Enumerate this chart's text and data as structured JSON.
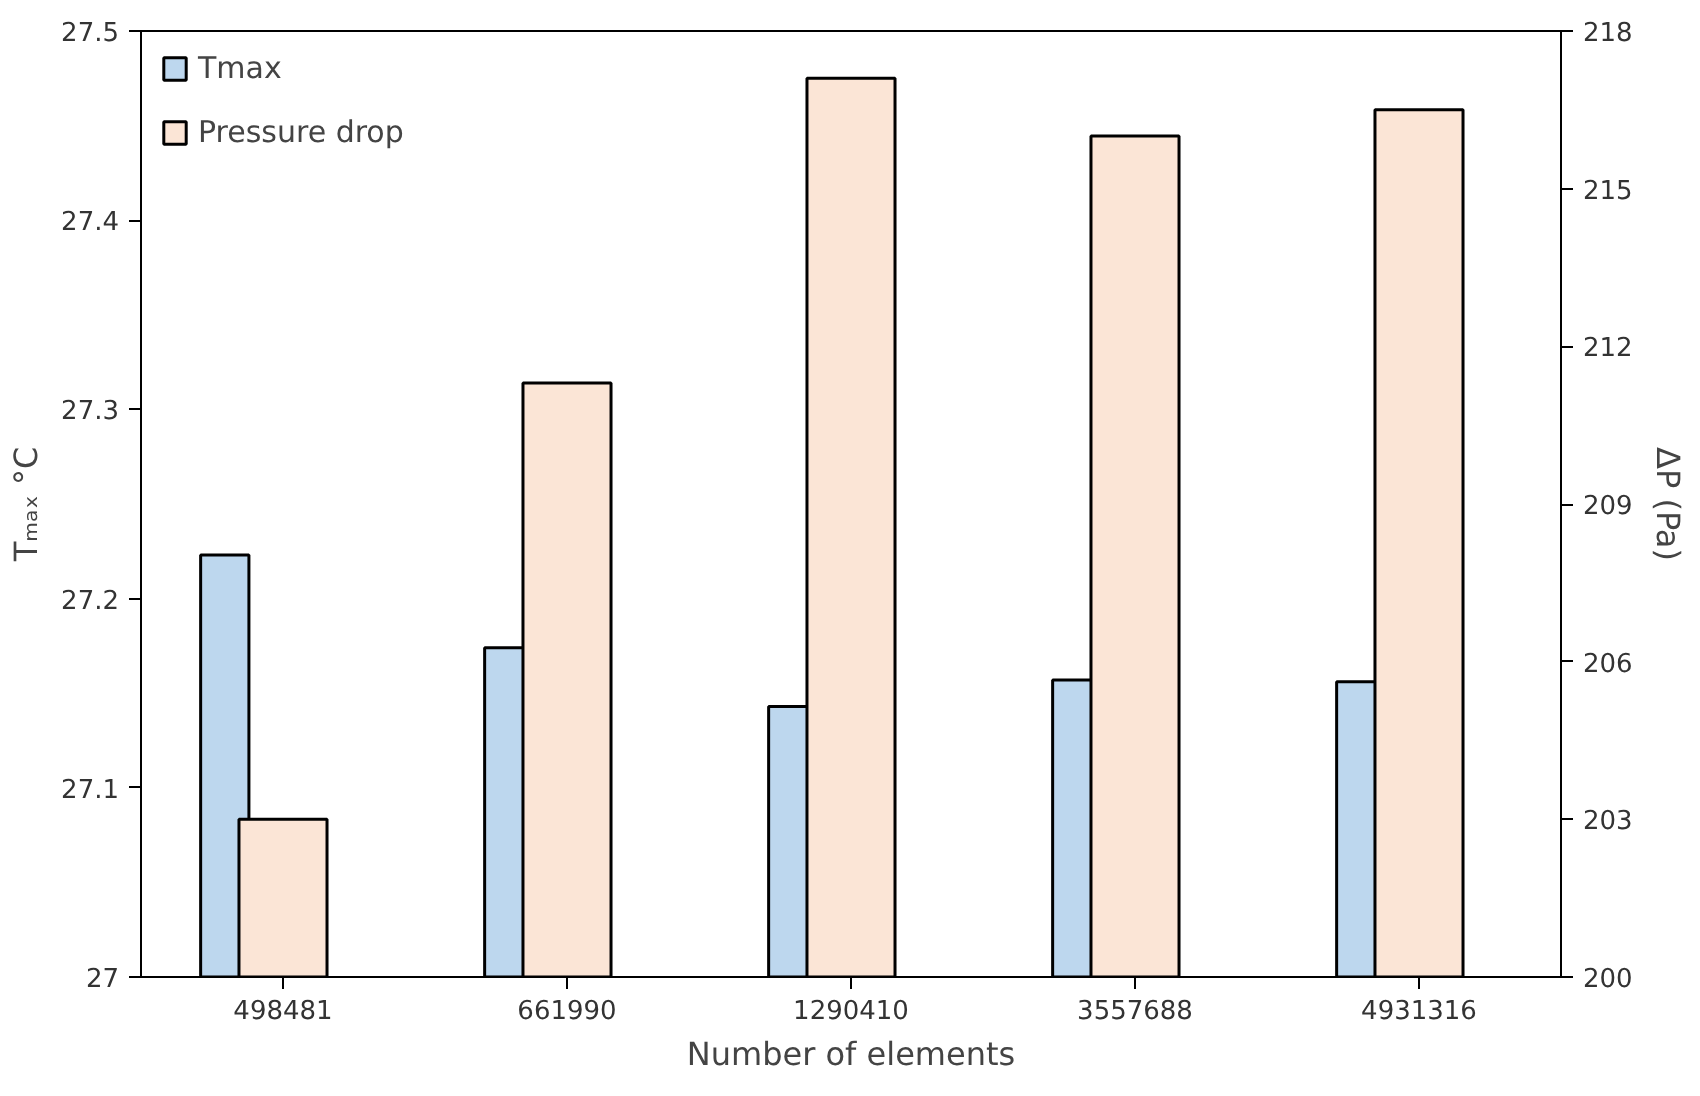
{
  "chart_data": {
    "type": "bar",
    "xlabel": "Number of elements",
    "ylabel": "Tₘₐₓ °C",
    "y2label": "ΔP (Pa)",
    "categories": [
      "498481",
      "661990",
      "1290410",
      "3557688",
      "4931316"
    ],
    "series": [
      {
        "name": "Tmax",
        "color": "#bdd7ee",
        "values": [
          27.223,
          27.174,
          27.143,
          27.157,
          27.156
        ]
      },
      {
        "name": "Pressure drop",
        "color": "#fbe5d6",
        "axis": "y2",
        "values": [
          203.0,
          211.3,
          217.1,
          216.0,
          216.5
        ]
      }
    ],
    "ylim": [
      27,
      27.5
    ],
    "yticks": [
      27,
      27.1,
      27.2,
      27.3,
      27.4,
      27.5
    ],
    "y2lim": [
      200,
      218
    ],
    "y2ticks": [
      200,
      203,
      206,
      209,
      212,
      215,
      218
    ],
    "grid": false,
    "legend": "top left"
  }
}
